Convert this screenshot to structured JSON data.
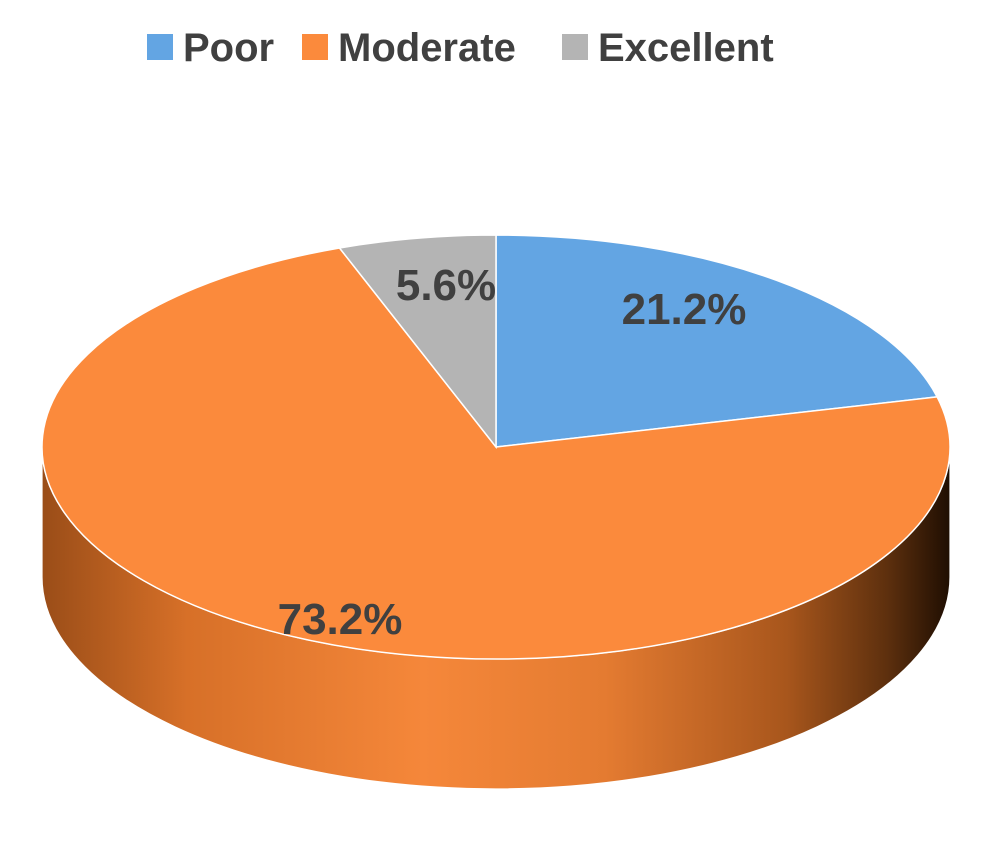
{
  "chart_data": {
    "type": "pie",
    "style": "3d",
    "categories": [
      "Poor",
      "Moderate",
      "Excellent"
    ],
    "values": [
      21.2,
      73.2,
      5.6
    ],
    "labels": [
      "21.2%",
      "73.2%",
      "5.6%"
    ],
    "colors": [
      "#63A5E3",
      "#FB8A3C",
      "#B4B4B4"
    ],
    "legend": {
      "position": "top",
      "entries": [
        "Poor",
        "Moderate",
        "Excellent"
      ]
    },
    "start_angle_deg": 0,
    "direction": "clockwise"
  }
}
